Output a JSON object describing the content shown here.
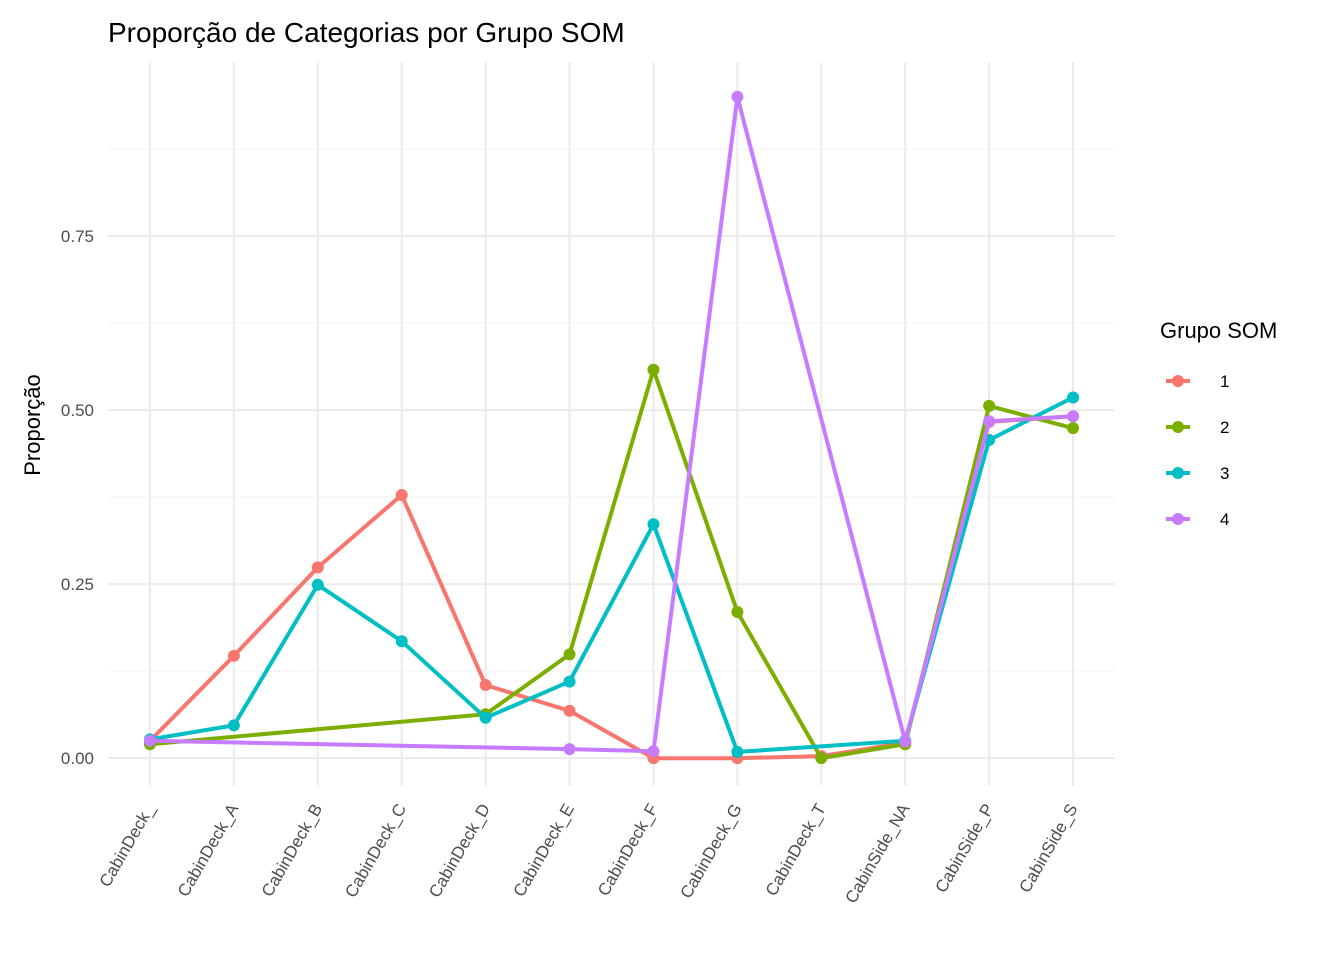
{
  "chart_data": {
    "type": "line",
    "title": "Proporção de Categorias por Grupo SOM",
    "xlabel": "",
    "ylabel": "Proporção",
    "ylim": [
      -0.04,
      1.0
    ],
    "yticks": [
      0.0,
      0.25,
      0.5,
      0.75
    ],
    "ytick_labels": [
      "0.00",
      "0.25",
      "0.50",
      "0.75"
    ],
    "categories": [
      "CabinDeck_",
      "CabinDeck_A",
      "CabinDeck_B",
      "CabinDeck_C",
      "CabinDeck_D",
      "CabinDeck_E",
      "CabinDeck_F",
      "CabinDeck_G",
      "CabinDeck_T",
      "CabinSide_NA",
      "CabinSide_P",
      "CabinSide_S"
    ],
    "grid": true,
    "legend": {
      "title": "Grupo SOM",
      "placement": "right"
    },
    "series": [
      {
        "name": "1",
        "color": "#F8766D",
        "values": [
          0.025,
          0.147,
          0.274,
          0.378,
          0.105,
          0.068,
          0.0,
          0.0,
          0.003,
          0.022,
          0.483,
          0.491
        ]
      },
      {
        "name": "2",
        "color": "#7CAE00",
        "values": [
          0.02,
          null,
          null,
          null,
          0.063,
          0.149,
          0.558,
          0.21,
          0.0,
          0.02,
          0.506,
          0.474
        ]
      },
      {
        "name": "3",
        "color": "#00BFC4",
        "values": [
          0.027,
          0.047,
          0.249,
          0.168,
          0.058,
          0.11,
          0.336,
          0.009,
          null,
          0.025,
          0.457,
          0.518
        ]
      },
      {
        "name": "4",
        "color": "#C77CFF",
        "values": [
          0.025,
          null,
          null,
          null,
          null,
          0.013,
          0.01,
          0.95,
          null,
          0.024,
          0.484,
          0.491
        ]
      }
    ]
  }
}
